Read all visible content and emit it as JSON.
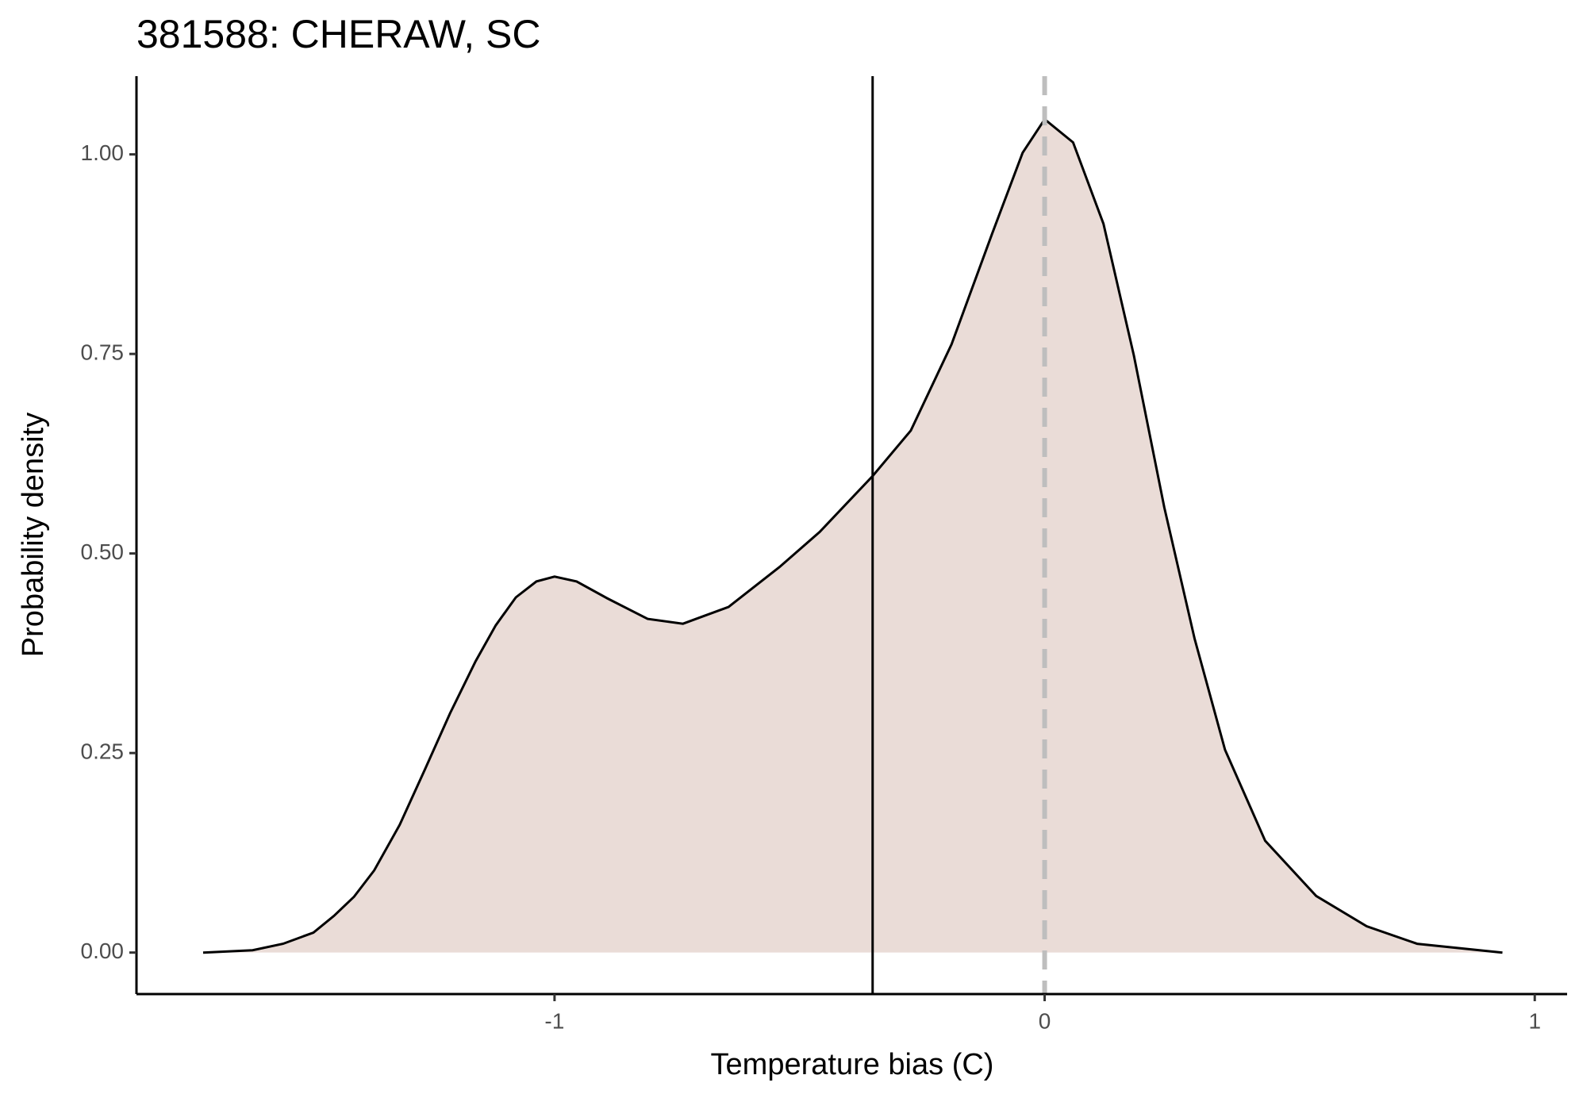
{
  "chart_data": {
    "type": "area",
    "title": "381588: CHERAW, SC",
    "x_label": "Temperature bias (C)",
    "y_label": "Probability density",
    "x": [
      -1.717,
      -1.616,
      -1.554,
      -1.492,
      -1.45,
      -1.409,
      -1.368,
      -1.316,
      -1.264,
      -1.213,
      -1.161,
      -1.12,
      -1.079,
      -1.037,
      -1.0,
      -0.955,
      -0.893,
      -0.81,
      -0.738,
      -0.645,
      -0.541,
      -0.459,
      -0.351,
      -0.273,
      -0.19,
      -0.107,
      -0.045,
      0.0,
      0.058,
      0.12,
      0.182,
      0.244,
      0.306,
      0.368,
      0.45,
      0.554,
      0.657,
      0.76,
      0.934
    ],
    "values": [
      0.0,
      0.003,
      0.011,
      0.025,
      0.046,
      0.07,
      0.103,
      0.16,
      0.23,
      0.3,
      0.365,
      0.41,
      0.445,
      0.465,
      0.471,
      0.465,
      0.444,
      0.418,
      0.412,
      0.433,
      0.483,
      0.527,
      0.597,
      0.654,
      0.762,
      0.901,
      1.002,
      1.044,
      1.015,
      0.913,
      0.748,
      0.558,
      0.393,
      0.254,
      0.14,
      0.071,
      0.033,
      0.011,
      0.0
    ],
    "color": "#eadcd7",
    "line_color": "#000000",
    "reference_lines": [
      {
        "x": -0.351,
        "color": "#000000",
        "style": "solid"
      },
      {
        "x": 0,
        "color": "#bebebe",
        "style": "dashed"
      }
    ],
    "xlim": [
      -1.853,
      1.066
    ],
    "ylim": [
      -0.052,
      1.098
    ],
    "xticks": [
      -1,
      0,
      1
    ],
    "yticks": [
      {
        "value": 0,
        "label": "0.00"
      },
      {
        "value": 0.25,
        "label": "0.25"
      },
      {
        "value": 0.5,
        "label": "0.50"
      },
      {
        "value": 0.75,
        "label": "0.75"
      },
      {
        "value": 1,
        "label": "1.00"
      }
    ],
    "grid": false
  }
}
